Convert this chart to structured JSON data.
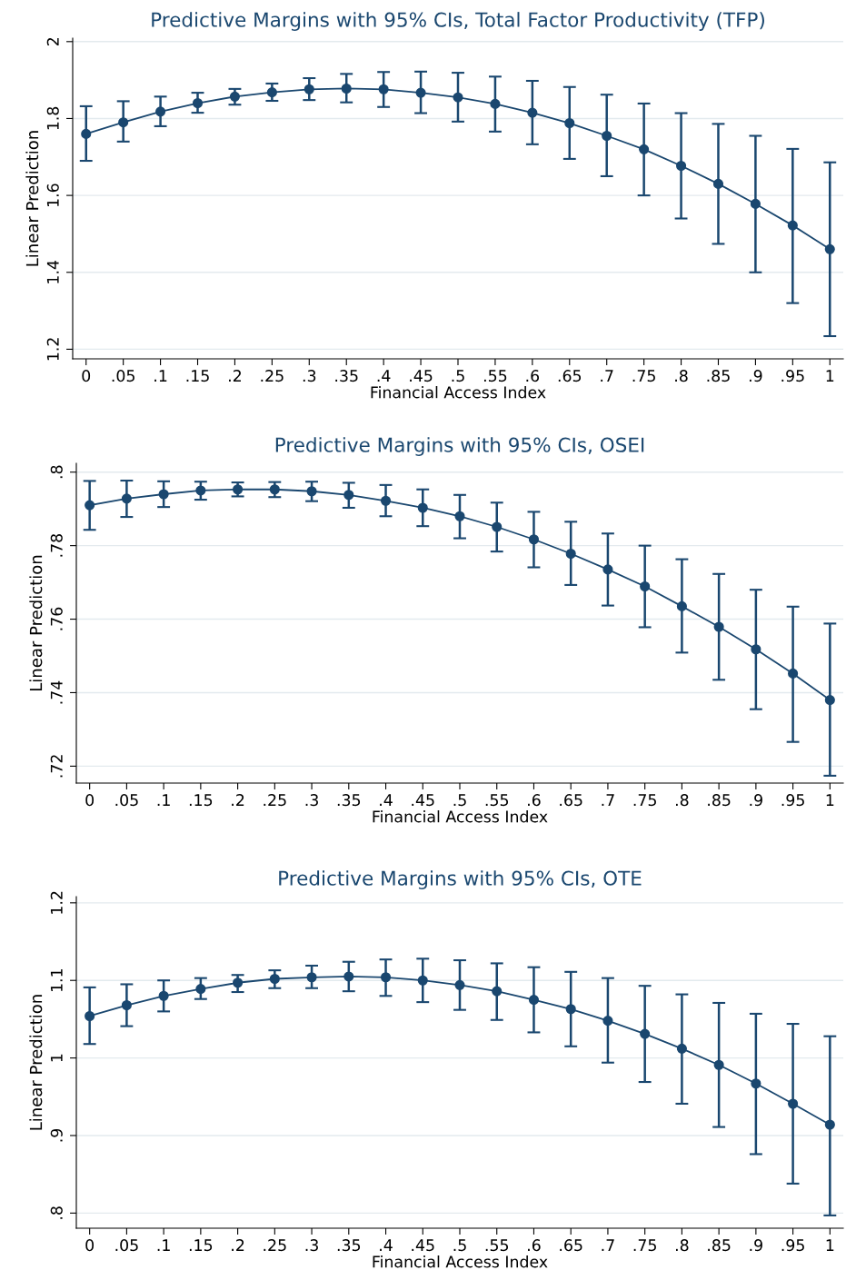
{
  "chart_data": [
    {
      "type": "line",
      "title": "Predictive Margins with 95% CIs, Total Factor Productivity (TFP)",
      "xlabel": "Financial Access Index",
      "ylabel": "Linear Prediction",
      "x": [
        0,
        0.05,
        0.1,
        0.15,
        0.2,
        0.25,
        0.3,
        0.35,
        0.4,
        0.45,
        0.5,
        0.55,
        0.6,
        0.65,
        0.7,
        0.75,
        0.8,
        0.85,
        0.9,
        0.95,
        1
      ],
      "series": [
        {
          "color": "#1a476f",
          "values": [
            1.76,
            1.79,
            1.818,
            1.84,
            1.857,
            1.868,
            1.876,
            1.878,
            1.876,
            1.867,
            1.855,
            1.838,
            1.815,
            1.788,
            1.755,
            1.72,
            1.677,
            1.63,
            1.578,
            1.522,
            1.46
          ],
          "errors": [
            [
              1.69,
              1.832
            ],
            [
              1.74,
              1.845
            ],
            [
              1.78,
              1.857
            ],
            [
              1.815,
              1.867
            ],
            [
              1.836,
              1.877
            ],
            [
              1.846,
              1.891
            ],
            [
              1.848,
              1.905
            ],
            [
              1.842,
              1.916
            ],
            [
              1.83,
              1.921
            ],
            [
              1.814,
              1.922
            ],
            [
              1.792,
              1.919
            ],
            [
              1.766,
              1.909
            ],
            [
              1.733,
              1.898
            ],
            [
              1.695,
              1.882
            ],
            [
              1.65,
              1.862
            ],
            [
              1.6,
              1.839
            ],
            [
              1.54,
              1.814
            ],
            [
              1.474,
              1.786
            ],
            [
              1.4,
              1.755
            ],
            [
              1.32,
              1.721
            ],
            [
              1.234,
              1.686
            ]
          ]
        }
      ],
      "xlim": [
        -0.018,
        1.018
      ],
      "ylim": [
        1.175,
        2.009
      ],
      "xticks": [
        0,
        {
          "value": 0.05,
          "label": ".05"
        },
        {
          "value": 0.1,
          "label": ".1"
        },
        {
          "value": 0.15,
          "label": ".15"
        },
        {
          "value": 0.2,
          "label": ".2"
        },
        {
          "value": 0.25,
          "label": ".25"
        },
        {
          "value": 0.3,
          "label": ".3"
        },
        {
          "value": 0.35,
          "label": ".35"
        },
        {
          "value": 0.4,
          "label": ".4"
        },
        {
          "value": 0.45,
          "label": ".45"
        },
        {
          "value": 0.5,
          "label": ".5"
        },
        {
          "value": 0.55,
          "label": ".55"
        },
        {
          "value": 0.6,
          "label": ".6"
        },
        {
          "value": 0.65,
          "label": ".65"
        },
        {
          "value": 0.7,
          "label": ".7"
        },
        {
          "value": 0.75,
          "label": ".75"
        },
        {
          "value": 0.8,
          "label": ".8"
        },
        {
          "value": 0.85,
          "label": ".85"
        },
        {
          "value": 0.9,
          "label": ".9"
        },
        {
          "value": 0.95,
          "label": ".95"
        },
        1
      ],
      "yticks": [
        1.2,
        1.4,
        1.6,
        1.8,
        2
      ],
      "grid": "y",
      "marker": "circle",
      "line_style": "solid"
    },
    {
      "type": "line",
      "title": "Predictive Margins with 95% CIs, OSEI",
      "xlabel": "Financial Access Index",
      "ylabel": "Linear Prediction",
      "x": [
        0,
        0.05,
        0.1,
        0.15,
        0.2,
        0.25,
        0.3,
        0.35,
        0.4,
        0.45,
        0.5,
        0.55,
        0.6,
        0.65,
        0.7,
        0.75,
        0.8,
        0.85,
        0.9,
        0.95,
        1
      ],
      "series": [
        {
          "color": "#1a476f",
          "values": [
            0.791,
            0.7928,
            0.794,
            0.795,
            0.7953,
            0.7953,
            0.7948,
            0.7938,
            0.7922,
            0.7903,
            0.788,
            0.7851,
            0.7817,
            0.7778,
            0.7735,
            0.7689,
            0.7635,
            0.7579,
            0.7518,
            0.7452,
            0.738
          ],
          "errors": [
            [
              0.7843,
              0.7976
            ],
            [
              0.7878,
              0.7977
            ],
            [
              0.7905,
              0.7975
            ],
            [
              0.7925,
              0.7974
            ],
            [
              0.7934,
              0.7972
            ],
            [
              0.7932,
              0.7973
            ],
            [
              0.7921,
              0.7974
            ],
            [
              0.7903,
              0.7971
            ],
            [
              0.788,
              0.7965
            ],
            [
              0.7853,
              0.7953
            ],
            [
              0.782,
              0.7938
            ],
            [
              0.7784,
              0.7917
            ],
            [
              0.7741,
              0.7892
            ],
            [
              0.7693,
              0.7865
            ],
            [
              0.7637,
              0.7833
            ],
            [
              0.7578,
              0.78
            ],
            [
              0.7509,
              0.7763
            ],
            [
              0.7435,
              0.7723
            ],
            [
              0.7355,
              0.768
            ],
            [
              0.7266,
              0.7634
            ],
            [
              0.7174,
              0.7588
            ]
          ]
        }
      ],
      "xlim": [
        -0.018,
        1.018
      ],
      "ylim": [
        0.7154,
        0.8024
      ],
      "xticks": [
        0,
        {
          "value": 0.05,
          "label": ".05"
        },
        {
          "value": 0.1,
          "label": ".1"
        },
        {
          "value": 0.15,
          "label": ".15"
        },
        {
          "value": 0.2,
          "label": ".2"
        },
        {
          "value": 0.25,
          "label": ".25"
        },
        {
          "value": 0.3,
          "label": ".3"
        },
        {
          "value": 0.35,
          "label": ".35"
        },
        {
          "value": 0.4,
          "label": ".4"
        },
        {
          "value": 0.45,
          "label": ".45"
        },
        {
          "value": 0.5,
          "label": ".5"
        },
        {
          "value": 0.55,
          "label": ".55"
        },
        {
          "value": 0.6,
          "label": ".6"
        },
        {
          "value": 0.65,
          "label": ".65"
        },
        {
          "value": 0.7,
          "label": ".7"
        },
        {
          "value": 0.75,
          "label": ".75"
        },
        {
          "value": 0.8,
          "label": ".8"
        },
        {
          "value": 0.85,
          "label": ".85"
        },
        {
          "value": 0.9,
          "label": ".9"
        },
        {
          "value": 0.95,
          "label": ".95"
        },
        1
      ],
      "yticks": [
        {
          "value": 0.72,
          "label": ".72"
        },
        {
          "value": 0.74,
          "label": ".74"
        },
        {
          "value": 0.76,
          "label": ".76"
        },
        {
          "value": 0.78,
          "label": ".78"
        },
        {
          "value": 0.8,
          "label": ".8"
        }
      ],
      "grid": "y",
      "marker": "circle",
      "line_style": "solid"
    },
    {
      "type": "line",
      "title": "Predictive Margins with 95% CIs, OTE",
      "xlabel": "Financial Access Index",
      "ylabel": "Linear Prediction",
      "x": [
        0,
        0.05,
        0.1,
        0.15,
        0.2,
        0.25,
        0.3,
        0.35,
        0.4,
        0.45,
        0.5,
        0.55,
        0.6,
        0.65,
        0.7,
        0.75,
        0.8,
        0.85,
        0.9,
        0.95,
        1
      ],
      "series": [
        {
          "color": "#1a476f",
          "values": [
            1.054,
            1.068,
            1.08,
            1.089,
            1.097,
            1.102,
            1.104,
            1.105,
            1.104,
            1.1,
            1.094,
            1.086,
            1.075,
            1.063,
            1.048,
            1.031,
            1.012,
            0.991,
            0.967,
            0.941,
            0.914
          ],
          "errors": [
            [
              1.018,
              1.091
            ],
            [
              1.041,
              1.095
            ],
            [
              1.06,
              1.1
            ],
            [
              1.076,
              1.103
            ],
            [
              1.085,
              1.107
            ],
            [
              1.09,
              1.113
            ],
            [
              1.09,
              1.119
            ],
            [
              1.086,
              1.124
            ],
            [
              1.08,
              1.127
            ],
            [
              1.072,
              1.128
            ],
            [
              1.062,
              1.126
            ],
            [
              1.049,
              1.122
            ],
            [
              1.033,
              1.117
            ],
            [
              1.015,
              1.111
            ],
            [
              0.994,
              1.103
            ],
            [
              0.969,
              1.093
            ],
            [
              0.941,
              1.082
            ],
            [
              0.911,
              1.071
            ],
            [
              0.876,
              1.057
            ],
            [
              0.838,
              1.044
            ],
            [
              0.797,
              1.028
            ]
          ]
        }
      ],
      "xlim": [
        -0.018,
        1.018
      ],
      "ylim": [
        0.7805,
        1.208
      ],
      "xticks": [
        0,
        {
          "value": 0.05,
          "label": ".05"
        },
        {
          "value": 0.1,
          "label": ".1"
        },
        {
          "value": 0.15,
          "label": ".15"
        },
        {
          "value": 0.2,
          "label": ".2"
        },
        {
          "value": 0.25,
          "label": ".25"
        },
        {
          "value": 0.3,
          "label": ".3"
        },
        {
          "value": 0.35,
          "label": ".35"
        },
        {
          "value": 0.4,
          "label": ".4"
        },
        {
          "value": 0.45,
          "label": ".45"
        },
        {
          "value": 0.5,
          "label": ".5"
        },
        {
          "value": 0.55,
          "label": ".55"
        },
        {
          "value": 0.6,
          "label": ".6"
        },
        {
          "value": 0.65,
          "label": ".65"
        },
        {
          "value": 0.7,
          "label": ".7"
        },
        {
          "value": 0.75,
          "label": ".75"
        },
        {
          "value": 0.8,
          "label": ".8"
        },
        {
          "value": 0.85,
          "label": ".85"
        },
        {
          "value": 0.9,
          "label": ".9"
        },
        {
          "value": 0.95,
          "label": ".95"
        },
        1
      ],
      "yticks": [
        {
          "value": 0.8,
          "label": ".8"
        },
        {
          "value": 0.9,
          "label": ".9"
        },
        1,
        1.1,
        1.2
      ],
      "grid": "y",
      "marker": "circle",
      "line_style": "solid"
    }
  ]
}
